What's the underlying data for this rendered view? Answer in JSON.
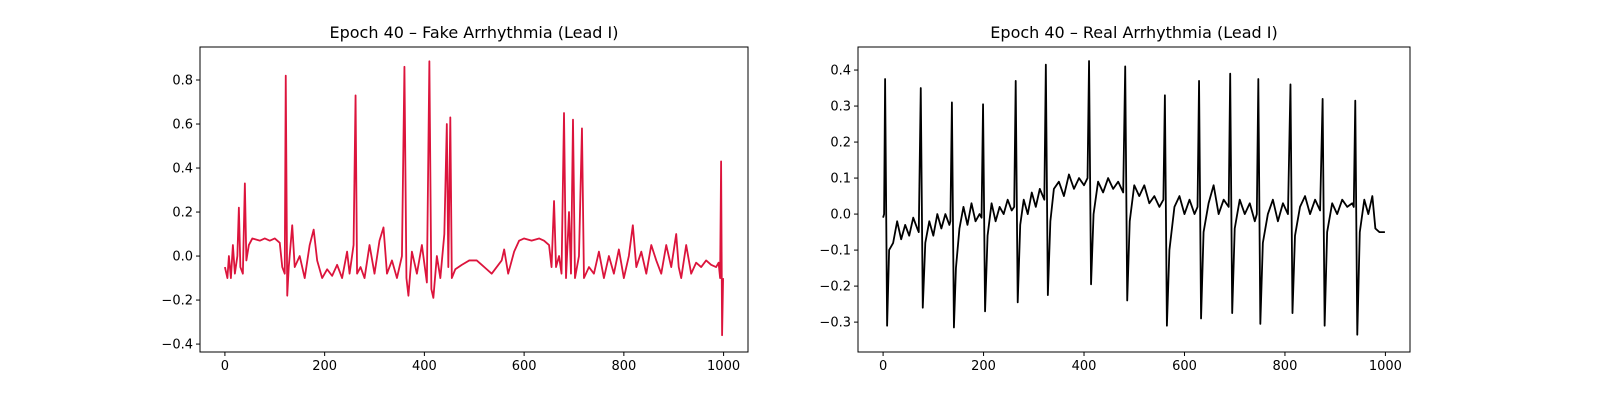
{
  "chart_data": [
    {
      "type": "line",
      "title": "Epoch 40 – Fake Arrhythmia (Lead I)",
      "color": "#dc143c",
      "x": [
        0,
        5,
        8,
        12,
        16,
        20,
        25,
        28,
        31,
        36,
        40,
        43,
        48,
        55,
        70,
        80,
        90,
        100,
        110,
        115,
        120,
        122,
        125,
        128,
        135,
        140,
        150,
        160,
        170,
        178,
        185,
        195,
        205,
        215,
        225,
        235,
        245,
        250,
        258,
        262,
        265,
        272,
        280,
        290,
        300,
        310,
        318,
        325,
        335,
        345,
        355,
        360,
        364,
        368,
        375,
        385,
        395,
        405,
        410,
        414,
        418,
        425,
        432,
        440,
        445,
        448,
        452,
        455,
        462,
        475,
        490,
        505,
        515,
        525,
        535,
        545,
        555,
        560,
        568,
        580,
        590,
        600,
        615,
        630,
        640,
        650,
        655,
        660,
        664,
        670,
        675,
        680,
        684,
        690,
        694,
        698,
        702,
        710,
        716,
        720,
        730,
        740,
        750,
        760,
        770,
        780,
        790,
        800,
        810,
        818,
        825,
        835,
        845,
        855,
        865,
        875,
        885,
        895,
        905,
        910,
        915,
        925,
        935,
        945,
        955,
        965,
        975,
        985,
        990,
        993,
        995,
        997,
        999
      ],
      "values": [
        -0.05,
        -0.1,
        0.0,
        -0.1,
        0.05,
        -0.08,
        0.0,
        0.22,
        -0.05,
        -0.08,
        0.33,
        -0.02,
        0.05,
        0.08,
        0.07,
        0.08,
        0.07,
        0.08,
        0.06,
        -0.05,
        -0.08,
        0.82,
        -0.18,
        -0.05,
        0.14,
        -0.05,
        0.0,
        -0.1,
        0.05,
        0.12,
        -0.02,
        -0.1,
        -0.06,
        -0.09,
        -0.04,
        -0.1,
        0.02,
        -0.08,
        0.05,
        0.73,
        -0.08,
        -0.05,
        -0.1,
        0.05,
        -0.08,
        0.07,
        0.13,
        -0.08,
        -0.02,
        -0.1,
        0.0,
        0.86,
        -0.1,
        -0.18,
        0.02,
        -0.08,
        0.05,
        -0.12,
        0.885,
        -0.15,
        -0.19,
        0.0,
        -0.1,
        0.1,
        0.6,
        -0.05,
        0.63,
        -0.1,
        -0.06,
        -0.04,
        -0.02,
        -0.02,
        -0.04,
        -0.06,
        -0.08,
        -0.05,
        -0.02,
        0.03,
        -0.08,
        0.02,
        0.07,
        0.08,
        0.07,
        0.08,
        0.07,
        0.05,
        -0.05,
        0.25,
        -0.05,
        0.0,
        -0.08,
        0.65,
        -0.1,
        0.2,
        -0.08,
        0.62,
        -0.1,
        0.0,
        0.58,
        -0.1,
        -0.05,
        -0.08,
        0.02,
        -0.1,
        0.0,
        -0.08,
        0.03,
        -0.1,
        0.0,
        0.14,
        -0.05,
        0.02,
        -0.08,
        0.05,
        -0.02,
        -0.08,
        0.05,
        -0.05,
        0.1,
        -0.05,
        -0.1,
        0.05,
        -0.08,
        -0.03,
        -0.05,
        -0.02,
        -0.04,
        -0.05,
        -0.03,
        -0.1,
        0.43,
        -0.36,
        -0.1
      ],
      "xlim": [
        -49.95,
        1048.95
      ],
      "ylim": [
        -0.436,
        0.95
      ],
      "xticks": [
        0,
        200,
        400,
        600,
        800,
        1000
      ],
      "yticks": [
        {
          "value": -0.4,
          "label": "−0.4"
        },
        {
          "value": -0.2,
          "label": "−0.2"
        },
        {
          "value": 0,
          "label": "0.0"
        },
        0.2,
        0.4,
        0.6,
        0.8
      ]
    },
    {
      "type": "line",
      "title": "Epoch 40 – Real Arrhythmia (Lead I)",
      "color": "#000000",
      "x": [
        0,
        2,
        4,
        8,
        12,
        20,
        28,
        36,
        44,
        52,
        60,
        68,
        71,
        75,
        79,
        84,
        92,
        100,
        108,
        116,
        124,
        132,
        134,
        137,
        141,
        145,
        152,
        160,
        168,
        176,
        184,
        192,
        196,
        199,
        203,
        208,
        216,
        224,
        232,
        240,
        248,
        256,
        261,
        264,
        268,
        273,
        280,
        288,
        296,
        304,
        312,
        321,
        324,
        328,
        333,
        340,
        350,
        360,
        370,
        380,
        390,
        400,
        407,
        410,
        414,
        419,
        428,
        438,
        448,
        458,
        468,
        478,
        482,
        486,
        491,
        500,
        510,
        520,
        530,
        540,
        550,
        558,
        561,
        565,
        570,
        580,
        590,
        600,
        610,
        620,
        626,
        629,
        633,
        638,
        648,
        658,
        668,
        678,
        688,
        691,
        695,
        700,
        710,
        720,
        730,
        740,
        744,
        747,
        751,
        756,
        766,
        776,
        786,
        796,
        806,
        811,
        815,
        820,
        830,
        840,
        850,
        860,
        870,
        875,
        879,
        884,
        894,
        904,
        914,
        924,
        934,
        937,
        940,
        944,
        949,
        958,
        966,
        974,
        980,
        988,
        994,
        999
      ],
      "values": [
        -0.01,
        0.0,
        0.375,
        -0.31,
        -0.1,
        -0.08,
        -0.02,
        -0.07,
        -0.03,
        -0.06,
        -0.01,
        -0.04,
        -0.05,
        0.35,
        -0.26,
        -0.08,
        -0.02,
        -0.06,
        0.0,
        -0.04,
        0.0,
        -0.03,
        -0.02,
        0.31,
        -0.315,
        -0.15,
        -0.04,
        0.02,
        -0.03,
        0.03,
        -0.02,
        0.0,
        -0.01,
        0.305,
        -0.27,
        -0.06,
        0.03,
        -0.02,
        0.02,
        0.0,
        0.04,
        0.01,
        0.02,
        0.37,
        -0.245,
        -0.03,
        0.04,
        0.0,
        0.06,
        0.02,
        0.07,
        0.04,
        0.415,
        -0.225,
        -0.02,
        0.07,
        0.09,
        0.05,
        0.11,
        0.07,
        0.1,
        0.08,
        0.1,
        0.425,
        -0.195,
        0.0,
        0.09,
        0.06,
        0.1,
        0.07,
        0.09,
        0.06,
        0.41,
        -0.24,
        -0.02,
        0.08,
        0.05,
        0.08,
        0.03,
        0.05,
        0.02,
        0.04,
        0.33,
        -0.31,
        -0.1,
        0.02,
        0.05,
        0.0,
        0.04,
        0.0,
        0.02,
        0.37,
        -0.29,
        -0.05,
        0.03,
        0.08,
        0.0,
        0.04,
        0.02,
        0.39,
        -0.275,
        -0.04,
        0.04,
        0.0,
        0.03,
        -0.02,
        0.0,
        0.375,
        -0.305,
        -0.08,
        0.0,
        0.04,
        -0.02,
        0.03,
        0.0,
        0.36,
        -0.275,
        -0.06,
        0.02,
        0.05,
        0.0,
        0.04,
        0.01,
        0.32,
        -0.31,
        -0.05,
        0.03,
        0.0,
        0.04,
        0.02,
        0.03,
        0.02,
        0.315,
        -0.335,
        -0.05,
        0.04,
        0.0,
        0.05,
        -0.04,
        -0.05,
        -0.05,
        -0.05
      ],
      "xlim": [
        -49.95,
        1048.95
      ],
      "ylim": [
        -0.383,
        0.464
      ],
      "xticks": [
        0,
        200,
        400,
        600,
        800,
        1000
      ],
      "yticks": [
        {
          "value": -0.3,
          "label": "−0.3"
        },
        {
          "value": -0.2,
          "label": "−0.2"
        },
        {
          "value": -0.1,
          "label": "−0.1"
        },
        {
          "value": 0,
          "label": "0.0"
        },
        0.1,
        0.2,
        0.3,
        0.4
      ]
    }
  ]
}
